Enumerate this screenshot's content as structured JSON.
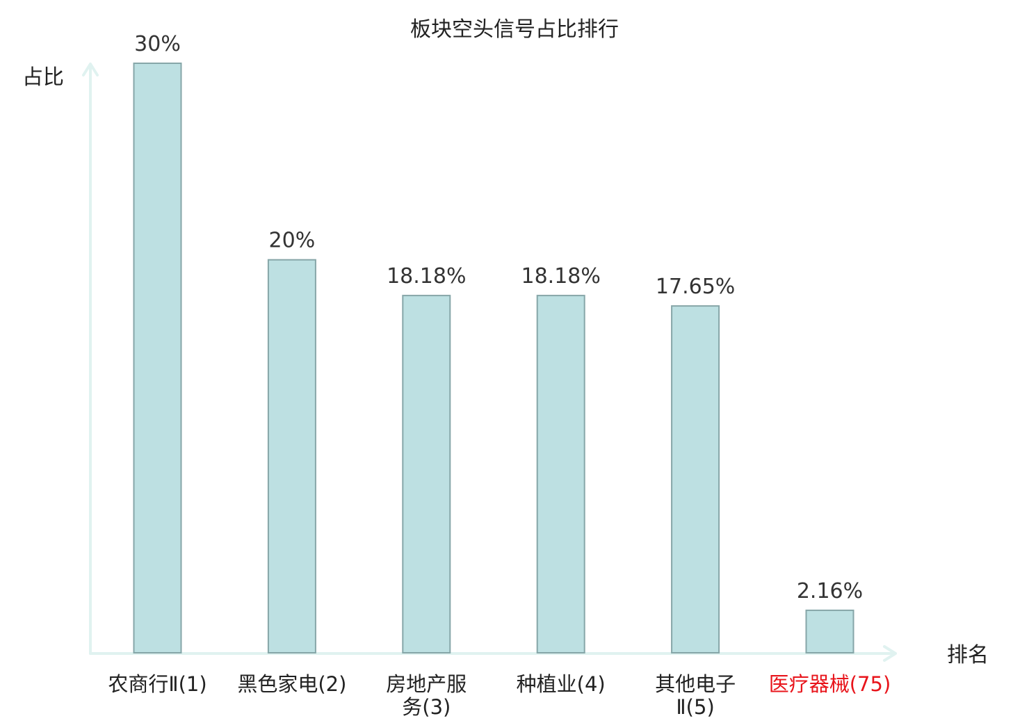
{
  "chart_data": {
    "type": "bar",
    "title": "板块空头信号占比排行",
    "xlabel": "排名",
    "ylabel": "占比",
    "ylim": [
      0,
      30
    ],
    "grid": false,
    "legend": "none",
    "highlight_color": "#e8141b",
    "bar_color": "#bde0e2",
    "axis_color": "#e0f2f0",
    "categories": [
      [
        "农商行Ⅱ(1)"
      ],
      [
        "黑色家电(2)"
      ],
      [
        "房地产服",
        "务(3)"
      ],
      [
        "种植业(4)"
      ],
      [
        "其他电子",
        "Ⅱ(5)"
      ],
      [
        "医疗器械(75)"
      ]
    ],
    "values": [
      30,
      20,
      18.18,
      18.18,
      17.65,
      2.16
    ],
    "value_labels": [
      "30%",
      "20%",
      "18.18%",
      "18.18%",
      "17.65%",
      "2.16%"
    ],
    "highlight": [
      false,
      false,
      false,
      false,
      false,
      true
    ]
  }
}
